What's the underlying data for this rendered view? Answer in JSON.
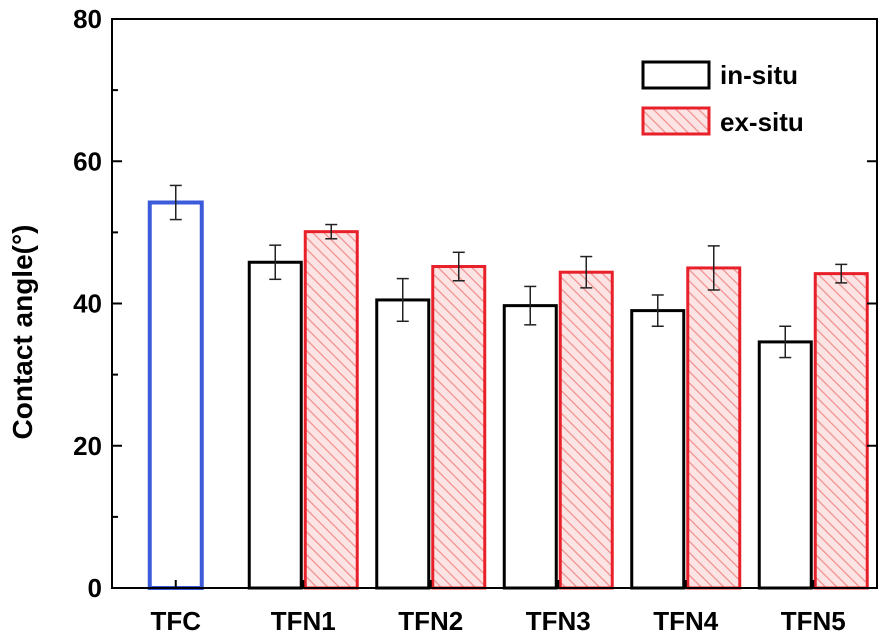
{
  "chart_data": {
    "type": "bar",
    "categories": [
      "TFC",
      "TFN1",
      "TFN2",
      "TFN3",
      "TFN4",
      "TFN5"
    ],
    "ylabel": "Contact angle(°)",
    "xlabel": "",
    "ylim": [
      0,
      80
    ],
    "yticks": [
      0,
      20,
      40,
      60,
      80
    ],
    "legend_position": "top-right",
    "colors": {
      "tfc": "#3b5bdb",
      "in_situ": "#000000",
      "ex_situ": "#e8202a",
      "ex_situ_hatch": "#f2a0a0"
    },
    "series": [
      {
        "name": "in-situ",
        "values": [
          54.2,
          45.8,
          40.5,
          39.7,
          39.0,
          34.6
        ],
        "errors": [
          2.4,
          2.4,
          3.0,
          2.7,
          2.2,
          2.2
        ]
      },
      {
        "name": "ex-situ",
        "values": [
          null,
          50.1,
          45.2,
          44.4,
          45.0,
          44.2
        ],
        "errors": [
          null,
          1.0,
          2.0,
          2.2,
          3.1,
          1.3
        ]
      }
    ]
  }
}
